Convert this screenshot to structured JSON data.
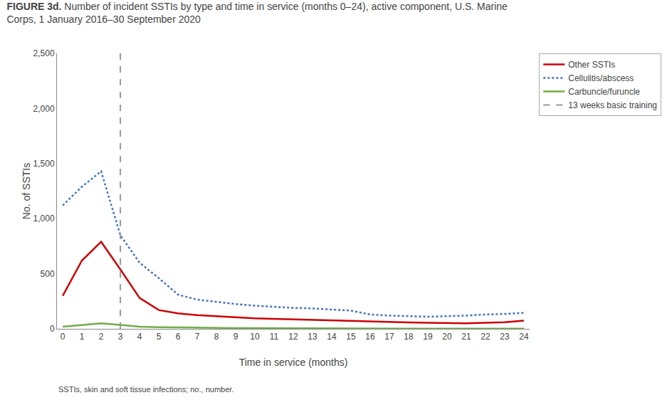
{
  "chart_data": {
    "type": "line",
    "title": "FIGURE 3d. Number of incident SSTIs by type and time in service (months 0–24), active component, U.S. Marine Corps, 1 January 2016–30 September 2020",
    "x_label": "Time in service (months)",
    "y_label": "No. of SSTIs",
    "annotations": [
      "SSTIs, skin and soft tissue infections; no., number."
    ],
    "x": [
      0,
      1,
      2,
      3,
      4,
      5,
      6,
      7,
      8,
      9,
      10,
      11,
      12,
      13,
      14,
      15,
      16,
      17,
      18,
      19,
      20,
      21,
      22,
      23,
      24
    ],
    "series": [
      {
        "name": "Other SSTIs",
        "color": "#cc0000",
        "line_style": "solid",
        "values": [
          300,
          620,
          790,
          540,
          280,
          170,
          140,
          125,
          115,
          105,
          95,
          90,
          85,
          80,
          75,
          70,
          65,
          60,
          58,
          55,
          52,
          50,
          55,
          60,
          75
        ]
      },
      {
        "name": "Cellulitis/abscess",
        "color": "#4472c4",
        "line_style": "dotted",
        "values": [
          1120,
          1290,
          1430,
          850,
          600,
          460,
          310,
          265,
          245,
          225,
          210,
          200,
          190,
          185,
          175,
          165,
          130,
          120,
          115,
          110,
          115,
          120,
          130,
          135,
          145
        ]
      },
      {
        "name": "Carbuncle/furuncle",
        "color": "#70ad47",
        "line_style": "solid",
        "values": [
          20,
          35,
          50,
          35,
          20,
          15,
          12,
          10,
          8,
          7,
          6,
          5,
          5,
          4,
          4,
          3,
          3,
          2,
          2,
          2,
          2,
          2,
          2,
          2,
          2
        ]
      }
    ],
    "vlines": [
      {
        "x": 3,
        "name": "13 weeks basic training",
        "color": "#999999",
        "line_style": "dashed"
      }
    ],
    "xlim": [
      -0.3,
      24.3
    ],
    "xticks": [
      0,
      1,
      2,
      3,
      4,
      5,
      6,
      7,
      8,
      9,
      10,
      11,
      12,
      13,
      14,
      15,
      16,
      17,
      18,
      19,
      20,
      21,
      22,
      23,
      24
    ],
    "ylim": [
      0,
      2500
    ],
    "yticks": [
      0,
      500,
      {
        "value": 1000,
        "label": "1,000"
      },
      {
        "value": 1500,
        "label": "1,500"
      },
      {
        "value": 2000,
        "label": "2,000"
      },
      {
        "value": 2500,
        "label": "2,500"
      }
    ],
    "grid": false,
    "legend": "right"
  }
}
